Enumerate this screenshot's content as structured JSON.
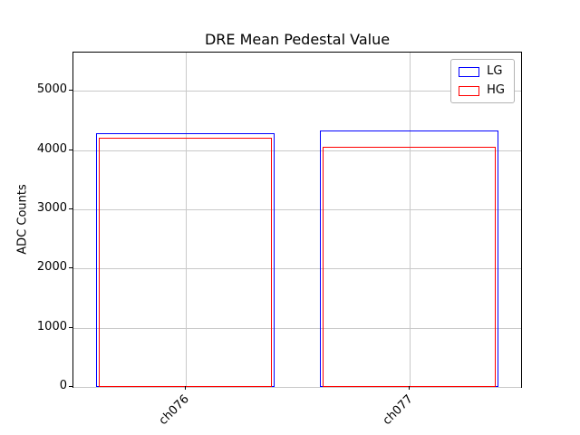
{
  "figure": {
    "background": "#ffffff"
  },
  "chart_data": {
    "type": "bar",
    "title": "DRE Mean Pedestal Value",
    "xlabel": "",
    "ylabel": "ADC Counts",
    "categories": [
      "ch076",
      "ch077"
    ],
    "series": [
      {
        "name": "LG",
        "color": "#0000ff",
        "values": [
          4280,
          4330
        ],
        "bar_width": 0.8,
        "fill": "none"
      },
      {
        "name": "HG",
        "color": "#ff0000",
        "values": [
          4210,
          4060
        ],
        "bar_width": 0.77,
        "fill": "none"
      }
    ],
    "ylim": [
      0,
      5650
    ],
    "yticks": [
      0,
      1000,
      2000,
      3000,
      4000,
      5000
    ],
    "grid": true,
    "grid_color": "#c9c9c9",
    "legend_position": "upper right",
    "xtick_rotation": 45
  }
}
